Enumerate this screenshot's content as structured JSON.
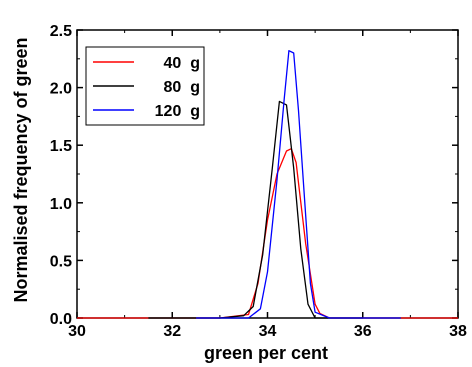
{
  "chart_data": {
    "type": "line",
    "title": "",
    "xlabel": "green per cent",
    "ylabel": "Normalised frequency of green",
    "xlim": [
      30,
      38
    ],
    "ylim": [
      0,
      2.5
    ],
    "x_ticks": [
      "30",
      "32",
      "34",
      "36",
      "38"
    ],
    "y_ticks": [
      "0.0",
      "0.5",
      "1.0",
      "1.5",
      "2.0",
      "2.5"
    ],
    "grid": false,
    "legend_position": "top-left",
    "series": [
      {
        "name": "40  g",
        "color": "#ff0000",
        "x": [
          30.0,
          31.5,
          33.0,
          33.6,
          33.8,
          34.0,
          34.2,
          34.4,
          34.5,
          34.6,
          34.8,
          35.0,
          35.1,
          35.3,
          36.0,
          38.0
        ],
        "y": [
          0.0,
          0.0,
          0.0,
          0.03,
          0.3,
          0.85,
          1.25,
          1.45,
          1.47,
          1.35,
          0.65,
          0.12,
          0.04,
          0.0,
          0.0,
          0.0
        ]
      },
      {
        "name": "80  g",
        "color": "#000000",
        "x": [
          31.5,
          33.0,
          33.5,
          33.7,
          33.9,
          34.1,
          34.25,
          34.4,
          34.55,
          34.7,
          34.85,
          35.0,
          36.0
        ],
        "y": [
          0.0,
          0.0,
          0.02,
          0.1,
          0.55,
          1.3,
          1.88,
          1.85,
          1.3,
          0.6,
          0.12,
          0.0,
          0.0
        ]
      },
      {
        "name": "120  g",
        "color": "#0000ff",
        "x": [
          32.5,
          33.6,
          33.85,
          34.0,
          34.2,
          34.35,
          34.45,
          34.55,
          34.65,
          34.8,
          34.9,
          35.0,
          35.3,
          36.8
        ],
        "y": [
          0.0,
          0.0,
          0.08,
          0.4,
          1.2,
          1.9,
          2.32,
          2.3,
          1.8,
          0.9,
          0.3,
          0.05,
          0.0,
          0.0
        ]
      }
    ]
  }
}
